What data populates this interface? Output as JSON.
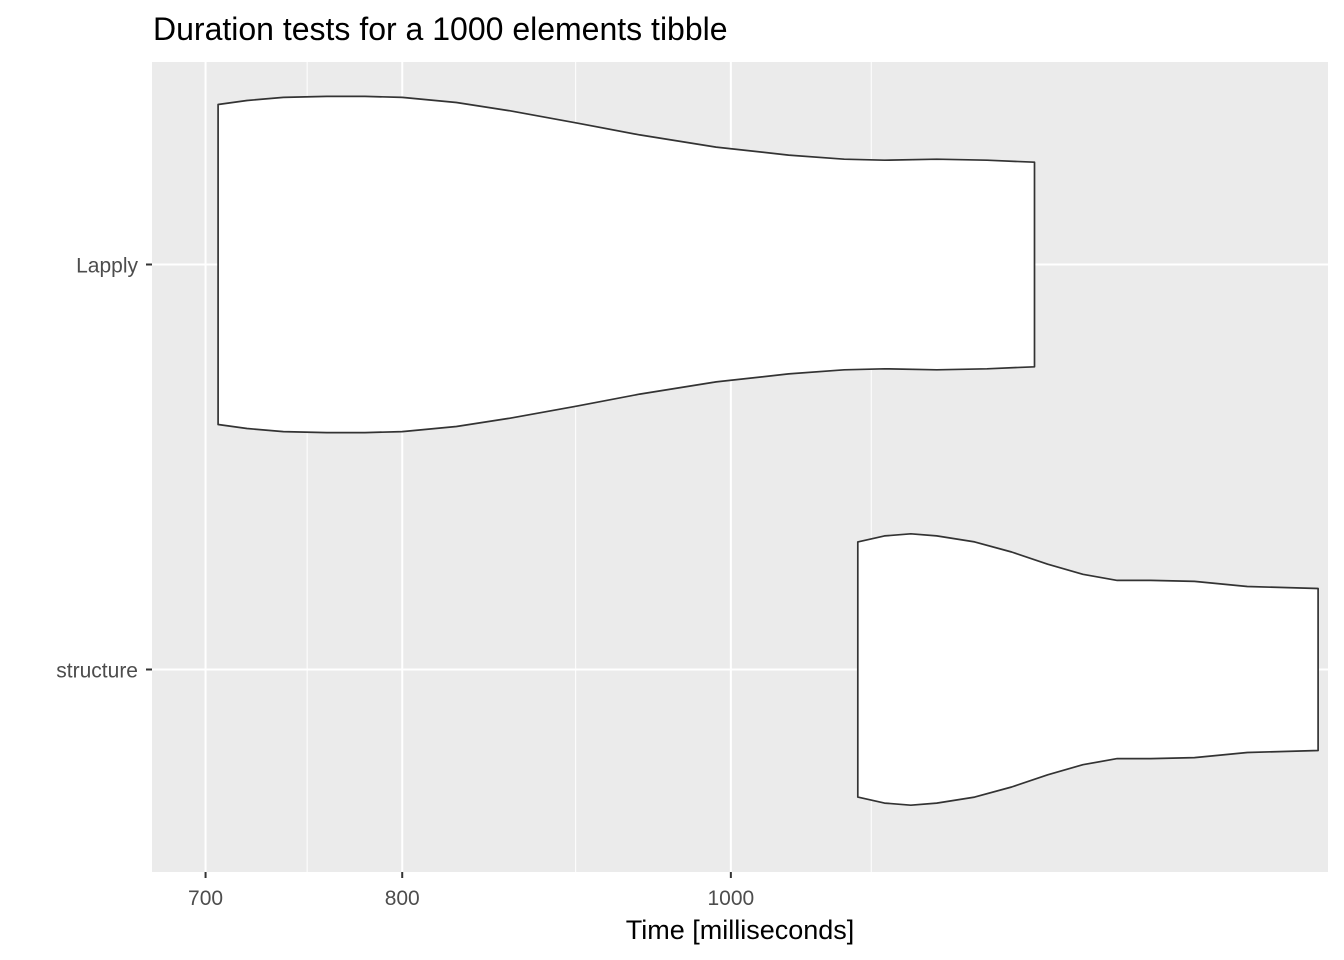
{
  "chart_data": {
    "type": "violin",
    "title": "Duration tests for a  1000  elements  tibble",
    "xlabel": "Time [milliseconds]",
    "ylabel": "",
    "x_scale": "log10",
    "xlim": [
      675,
      1500
    ],
    "x_ticks": [
      700,
      800,
      1000
    ],
    "x_tick_labels": [
      "700",
      "800",
      "1000"
    ],
    "x_minor_ticks": [
      750,
      900,
      1100
    ],
    "categories": [
      "Lapply",
      "structure"
    ],
    "grid": true,
    "colors": {
      "panel": "#ebebeb",
      "grid": "#ffffff",
      "fill": "#ffffff",
      "outline": "#333333",
      "tick_text": "#4d4d4d"
    },
    "series": [
      {
        "name": "Lapply",
        "min": 706,
        "max": 1229,
        "density_profile": [
          [
            706,
            0.79
          ],
          [
            720,
            0.81
          ],
          [
            738,
            0.825
          ],
          [
            760,
            0.83
          ],
          [
            780,
            0.83
          ],
          [
            800,
            0.825
          ],
          [
            830,
            0.8
          ],
          [
            860,
            0.76
          ],
          [
            900,
            0.7
          ],
          [
            940,
            0.64
          ],
          [
            990,
            0.58
          ],
          [
            1040,
            0.54
          ],
          [
            1080,
            0.52
          ],
          [
            1110,
            0.515
          ],
          [
            1150,
            0.52
          ],
          [
            1190,
            0.515
          ],
          [
            1229,
            0.505
          ]
        ]
      },
      {
        "name": "structure",
        "min": 1090,
        "max": 1490,
        "density_profile": [
          [
            1090,
            0.63
          ],
          [
            1110,
            0.66
          ],
          [
            1130,
            0.67
          ],
          [
            1150,
            0.66
          ],
          [
            1180,
            0.63
          ],
          [
            1210,
            0.58
          ],
          [
            1240,
            0.52
          ],
          [
            1270,
            0.47
          ],
          [
            1300,
            0.44
          ],
          [
            1330,
            0.44
          ],
          [
            1370,
            0.435
          ],
          [
            1420,
            0.41
          ],
          [
            1490,
            0.4
          ]
        ]
      }
    ]
  }
}
